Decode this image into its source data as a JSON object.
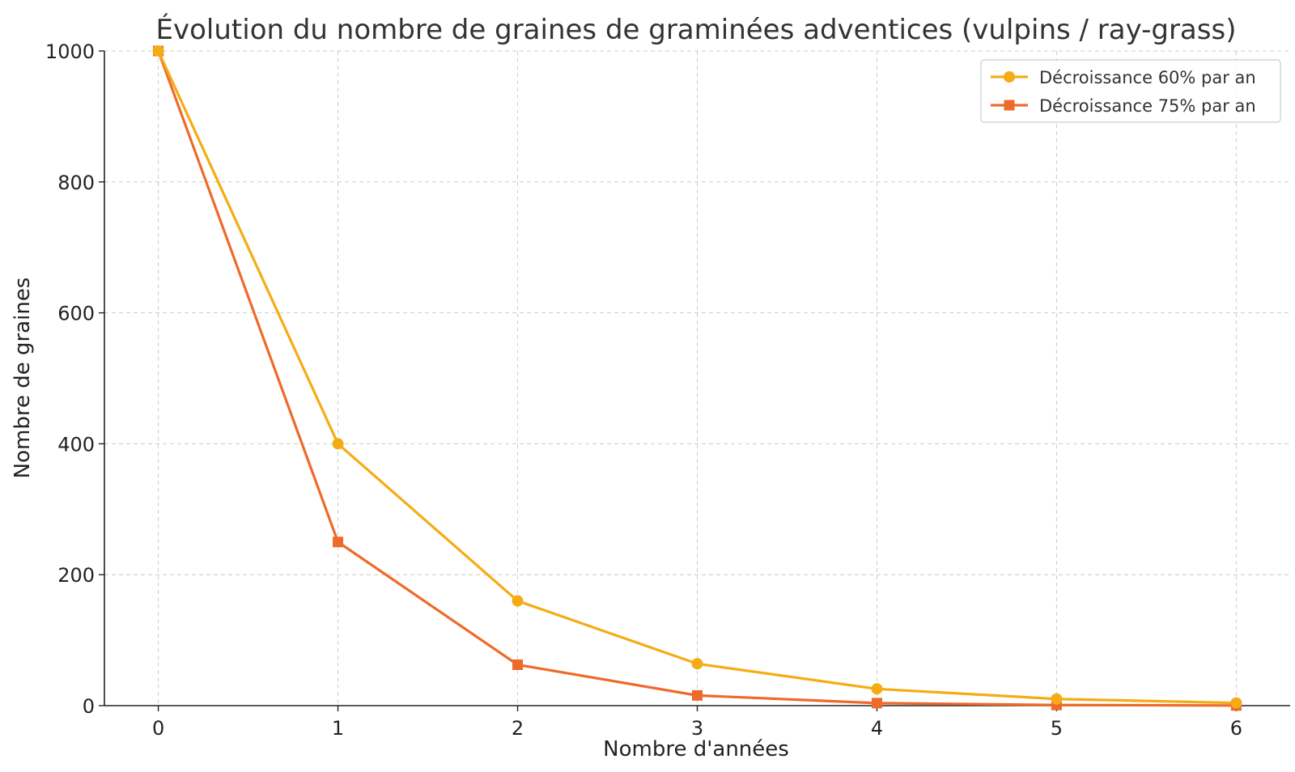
{
  "chart_data": {
    "type": "line",
    "title": "Évolution du nombre de graines de graminées adventices (vulpins / ray-grass)",
    "xlabel": "Nombre d'années",
    "ylabel": "Nombre de graines",
    "x": [
      0,
      1,
      2,
      3,
      4,
      5,
      6
    ],
    "xlim": [
      -0.3,
      6.3
    ],
    "ylim": [
      0,
      1000
    ],
    "xticks": [
      0,
      1,
      2,
      3,
      4,
      5,
      6
    ],
    "yticks": [
      0,
      200,
      400,
      600,
      800,
      1000
    ],
    "grid": true,
    "legend_position": "top-right",
    "series": [
      {
        "name": "Décroissance 60% par an",
        "values": [
          1000,
          400,
          160,
          64,
          25.6,
          10.24,
          4.1
        ],
        "color": "#f5ac14",
        "marker": "circle"
      },
      {
        "name": "Décroissance 75% par an",
        "values": [
          1000,
          250,
          62.5,
          15.6,
          3.9,
          0.98,
          0.24
        ],
        "color": "#ee6a2a",
        "marker": "square"
      }
    ]
  }
}
